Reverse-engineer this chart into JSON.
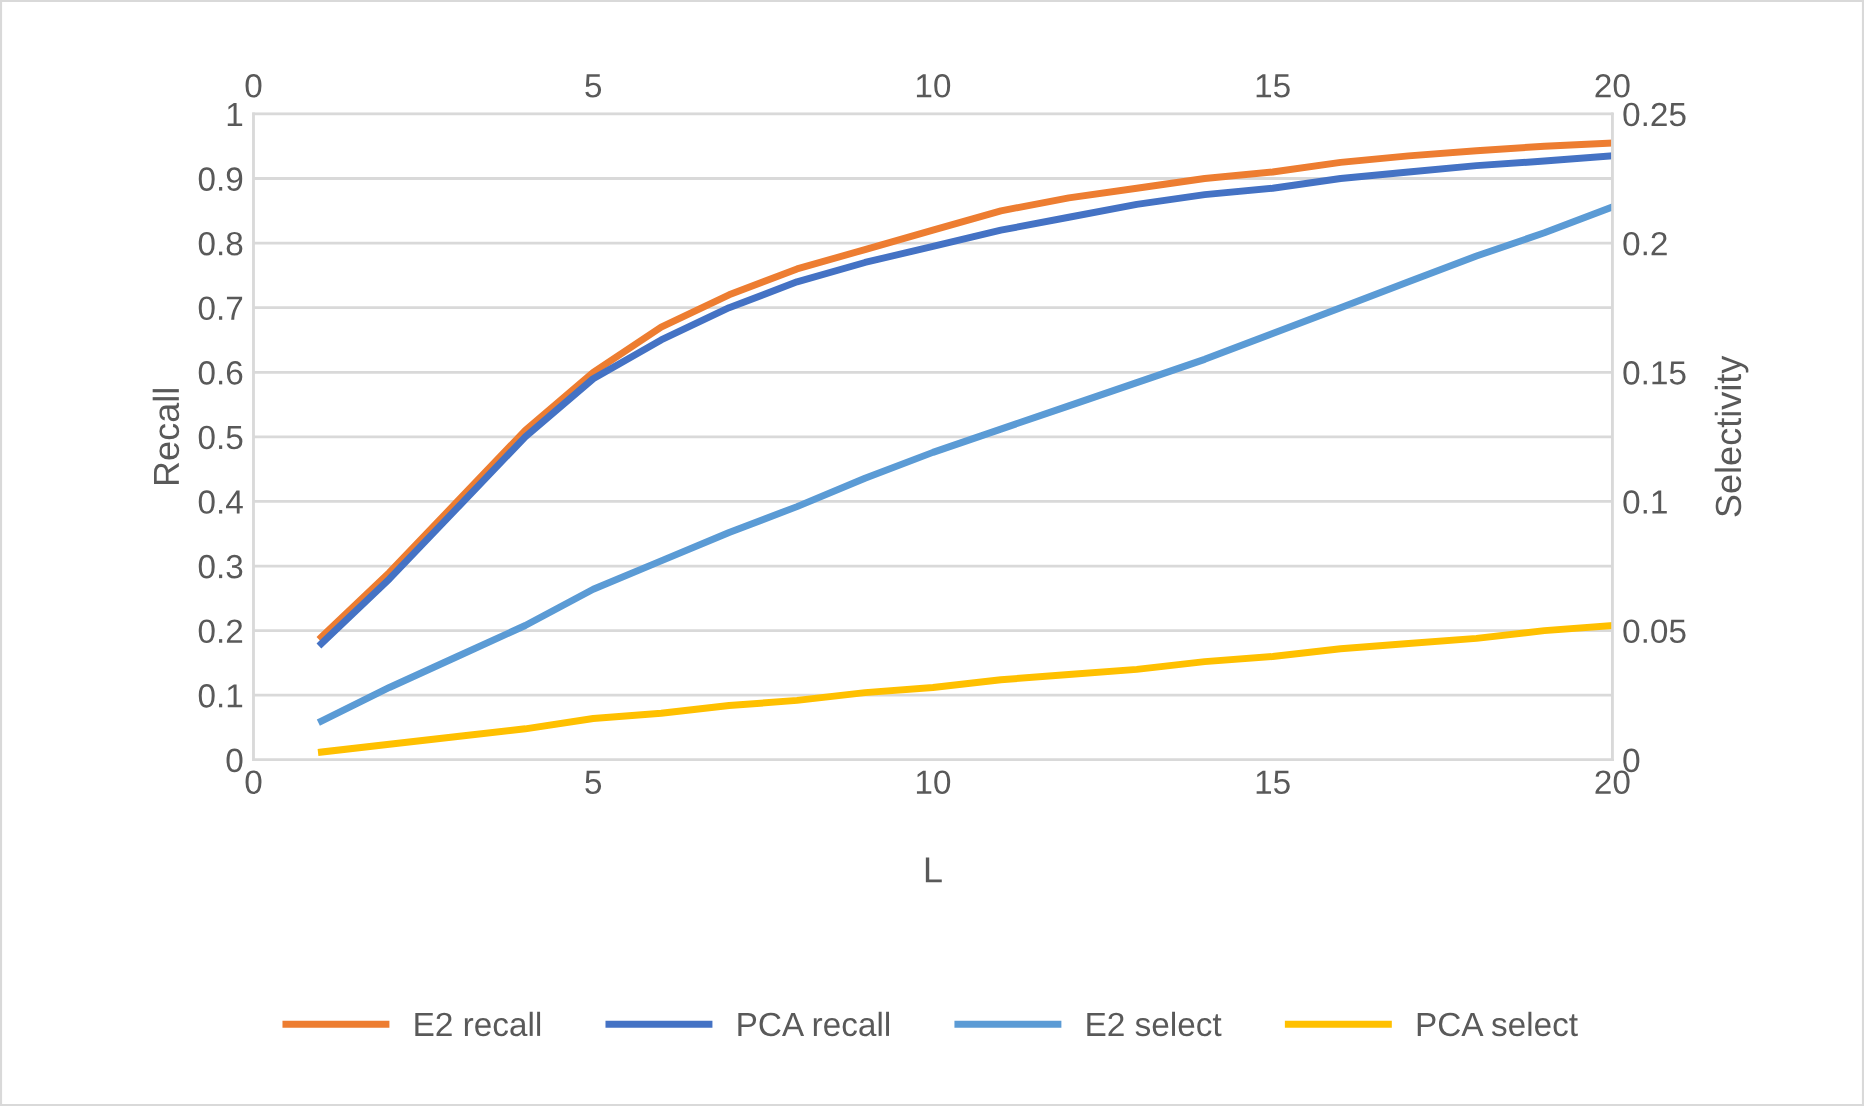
{
  "chart_data": {
    "type": "line",
    "xlabel": "L",
    "ylabel": "Recall",
    "y2label": "Selectivity",
    "x": [
      1,
      2,
      3,
      4,
      5,
      6,
      7,
      8,
      9,
      10,
      11,
      12,
      13,
      14,
      15,
      16,
      17,
      18,
      19,
      20
    ],
    "series": [
      {
        "name": "E2 recall",
        "color": "#ed7d31",
        "values": [
          0.19,
          0.29,
          0.4,
          0.51,
          0.6,
          0.67,
          0.72,
          0.76,
          0.79,
          0.82,
          0.85,
          0.87,
          0.885,
          0.9,
          0.91,
          0.925,
          0.935,
          0.943,
          0.95,
          0.955
        ]
      },
      {
        "name": "PCA recall",
        "color": "#4472c4",
        "values": [
          0.18,
          0.28,
          0.39,
          0.5,
          0.59,
          0.65,
          0.7,
          0.74,
          0.77,
          0.795,
          0.82,
          0.84,
          0.86,
          0.875,
          0.885,
          0.9,
          0.91,
          0.92,
          0.927,
          0.935
        ]
      },
      {
        "name": "E2 select",
        "color": "#5b9bd5",
        "axis": "y2",
        "values": [
          0.015,
          0.028,
          0.04,
          0.052,
          0.066,
          0.077,
          0.088,
          0.098,
          0.109,
          0.119,
          0.128,
          0.137,
          0.146,
          0.155,
          0.165,
          0.175,
          0.185,
          0.195,
          0.204,
          0.214
        ]
      },
      {
        "name": "PCA select",
        "color": "#ffc000",
        "axis": "y2",
        "values": [
          0.003,
          0.006,
          0.009,
          0.012,
          0.016,
          0.018,
          0.021,
          0.023,
          0.026,
          0.028,
          0.031,
          0.033,
          0.035,
          0.038,
          0.04,
          0.043,
          0.045,
          0.047,
          0.05,
          0.052
        ]
      }
    ],
    "xlim": [
      0,
      20
    ],
    "xticks": [
      0,
      5,
      10,
      15,
      20
    ],
    "x2lim": [
      0,
      20
    ],
    "x2ticks": [
      0,
      5,
      10,
      15,
      20
    ],
    "ylim": [
      0,
      1
    ],
    "yticks": [
      0,
      0.1,
      0.2,
      0.3,
      0.4,
      0.5,
      0.6,
      0.7,
      0.8,
      0.9,
      1
    ],
    "y2lim": [
      0,
      0.25
    ],
    "y2ticks": [
      0,
      0.05,
      0.1,
      0.15,
      0.2,
      0.25
    ],
    "grid": "y",
    "legend": "bottom",
    "marker": "none",
    "line_style": "solid"
  }
}
